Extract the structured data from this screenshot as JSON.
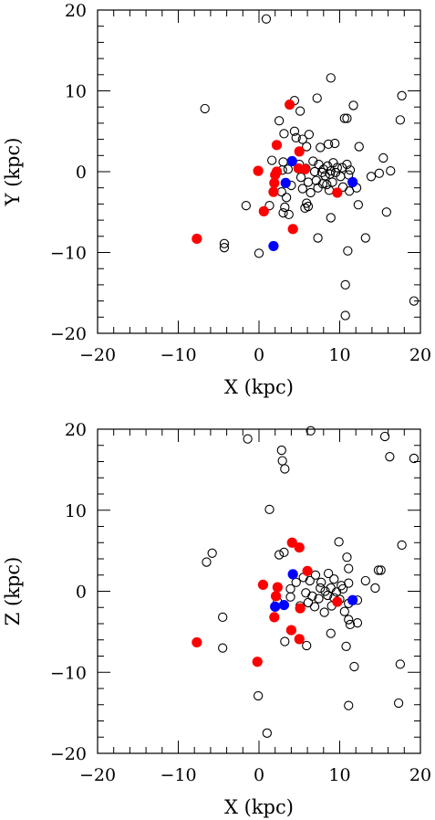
{
  "colors": {
    "open": "#000000",
    "red": "#ff0000",
    "blue": "#0000ff"
  },
  "chart_data": [
    {
      "type": "scatter",
      "xlabel": "X (kpc)",
      "ylabel": "Y (kpc)",
      "xlim": [
        -20,
        20
      ],
      "ylim": [
        -20,
        20
      ],
      "xticks": [
        "−20",
        "−10",
        "0",
        "10",
        "20"
      ],
      "yticks": [
        "−20",
        "−10",
        "0",
        "10",
        "20"
      ],
      "grid": false,
      "series": [
        {
          "marker": "open-circle",
          "color": "#000000",
          "points": [
            [
              0.9,
              18.9
            ],
            [
              -6.7,
              7.8
            ],
            [
              8.9,
              11.6
            ],
            [
              17.7,
              9.4
            ],
            [
              17.5,
              6.4
            ],
            [
              7.2,
              9.1
            ],
            [
              4.4,
              8.8
            ],
            [
              11.7,
              8.2
            ],
            [
              5.1,
              7.5
            ],
            [
              10.6,
              6.6
            ],
            [
              10.9,
              6.6
            ],
            [
              2.5,
              6.3
            ],
            [
              3.1,
              4.7
            ],
            [
              4.4,
              5.0
            ],
            [
              4.6,
              4.2
            ],
            [
              5.4,
              4.0
            ],
            [
              6.2,
              4.6
            ],
            [
              15.4,
              1.7
            ],
            [
              9.4,
              3.5
            ],
            [
              7.6,
              3.0
            ],
            [
              5.9,
              3.1
            ],
            [
              8.6,
              3.4
            ],
            [
              12.4,
              3.1
            ],
            [
              1.6,
              1.4
            ],
            [
              3.0,
              1.2
            ],
            [
              5.0,
              0.9
            ],
            [
              6.7,
              1.3
            ],
            [
              7.4,
              0.9
            ],
            [
              8.0,
              0.3
            ],
            [
              8.5,
              0.7
            ],
            [
              8.9,
              0.1
            ],
            [
              9.2,
              1.1
            ],
            [
              9.7,
              0.5
            ],
            [
              10.3,
              0.5
            ],
            [
              10.9,
              0.9
            ],
            [
              11.3,
              0.2
            ],
            [
              2.9,
              0.2
            ],
            [
              3.6,
              0.3
            ],
            [
              5.8,
              0.4
            ],
            [
              6.9,
              0.0
            ],
            [
              7.8,
              -0.1
            ],
            [
              8.2,
              -0.5
            ],
            [
              8.8,
              -0.3
            ],
            [
              9.5,
              -0.1
            ],
            [
              10.1,
              -0.6
            ],
            [
              11.1,
              -0.4
            ],
            [
              13.9,
              -0.6
            ],
            [
              14.9,
              -0.2
            ],
            [
              16.3,
              0.1
            ],
            [
              5.2,
              -0.7
            ],
            [
              6.1,
              -1.3
            ],
            [
              7.1,
              -1.1
            ],
            [
              8.4,
              -1.6
            ],
            [
              9.1,
              -1.3
            ],
            [
              10.4,
              -1.9
            ],
            [
              11.2,
              -2.4
            ],
            [
              12.1,
              -2.0
            ],
            [
              7.3,
              -2.0
            ],
            [
              5.4,
              -2.1
            ],
            [
              4.0,
              -1.7
            ],
            [
              2.8,
              -2.5
            ],
            [
              3.4,
              -3.2
            ],
            [
              7.9,
              -1.5
            ],
            [
              6.4,
              -2.6
            ],
            [
              8.7,
              -2.3
            ],
            [
              -1.6,
              -4.2
            ],
            [
              1.3,
              -4.2
            ],
            [
              3.2,
              -4.4
            ],
            [
              3.0,
              -5.1
            ],
            [
              3.7,
              -5.3
            ],
            [
              5.9,
              -3.9
            ],
            [
              6.1,
              -4.3
            ],
            [
              5.7,
              -4.5
            ],
            [
              8.9,
              -5.7
            ],
            [
              12.3,
              -4.1
            ],
            [
              15.8,
              -5.0
            ],
            [
              7.3,
              -8.2
            ],
            [
              13.2,
              -8.2
            ],
            [
              11.0,
              -9.8
            ],
            [
              -4.3,
              -8.9
            ],
            [
              -4.3,
              -9.4
            ],
            [
              0.0,
              -10.1
            ],
            [
              10.7,
              -14.0
            ],
            [
              10.7,
              -17.8
            ],
            [
              19.2,
              -16.0
            ]
          ]
        },
        {
          "marker": "filled-circle",
          "color": "#ff0000",
          "points": [
            [
              3.8,
              8.3
            ],
            [
              2.2,
              3.3
            ],
            [
              5.0,
              2.5
            ],
            [
              -0.1,
              0.1
            ],
            [
              2.2,
              0.0
            ],
            [
              4.9,
              0.4
            ],
            [
              5.7,
              0.3
            ],
            [
              2.0,
              -0.4
            ],
            [
              1.9,
              -1.4
            ],
            [
              1.8,
              -2.5
            ],
            [
              9.7,
              -2.6
            ],
            [
              0.6,
              -4.9
            ],
            [
              4.2,
              -7.1
            ],
            [
              -7.7,
              -8.3
            ]
          ]
        },
        {
          "marker": "filled-circle",
          "color": "#0000ff",
          "points": [
            [
              4.1,
              1.3
            ],
            [
              3.3,
              -1.4
            ],
            [
              11.6,
              -1.3
            ],
            [
              1.8,
              -9.2
            ]
          ]
        }
      ]
    },
    {
      "type": "scatter",
      "xlabel": "X (kpc)",
      "ylabel": "Z (kpc)",
      "xlim": [
        -20,
        20
      ],
      "ylim": [
        -20,
        20
      ],
      "xticks": [
        "−20",
        "−10",
        "0",
        "10",
        "20"
      ],
      "yticks": [
        "−20",
        "−10",
        "0",
        "10",
        "20"
      ],
      "grid": false,
      "series": [
        {
          "marker": "open-circle",
          "color": "#000000",
          "points": [
            [
              6.4,
              19.8
            ],
            [
              -1.4,
              18.8
            ],
            [
              2.8,
              17.4
            ],
            [
              15.6,
              19.1
            ],
            [
              16.2,
              16.6
            ],
            [
              19.2,
              16.4
            ],
            [
              2.9,
              16.1
            ],
            [
              3.2,
              15.1
            ],
            [
              1.3,
              10.1
            ],
            [
              -5.8,
              4.7
            ],
            [
              -6.5,
              3.6
            ],
            [
              2.5,
              4.5
            ],
            [
              3.1,
              4.8
            ],
            [
              9.9,
              6.1
            ],
            [
              10.9,
              4.2
            ],
            [
              17.7,
              5.7
            ],
            [
              11.1,
              2.8
            ],
            [
              14.8,
              2.6
            ],
            [
              15.1,
              2.6
            ],
            [
              13.2,
              1.3
            ],
            [
              14.4,
              0.4
            ],
            [
              3.9,
              0.3
            ],
            [
              4.6,
              1.1
            ],
            [
              5.5,
              1.7
            ],
            [
              6.3,
              1.3
            ],
            [
              7.0,
              2.0
            ],
            [
              7.7,
              1.1
            ],
            [
              8.6,
              2.2
            ],
            [
              9.3,
              1.5
            ],
            [
              10.2,
              0.7
            ],
            [
              11.1,
              1.0
            ],
            [
              7.6,
              0.4
            ],
            [
              8.2,
              0.0
            ],
            [
              8.9,
              0.4
            ],
            [
              9.6,
              -0.1
            ],
            [
              10.4,
              0.3
            ],
            [
              5.8,
              -0.2
            ],
            [
              6.6,
              -0.6
            ],
            [
              7.4,
              -0.9
            ],
            [
              8.5,
              -0.5
            ],
            [
              9.3,
              -0.8
            ],
            [
              10.0,
              -1.0
            ],
            [
              11.1,
              -1.5
            ],
            [
              12.2,
              -1.1
            ],
            [
              2.3,
              -1.3
            ],
            [
              3.9,
              -0.7
            ],
            [
              5.1,
              -1.8
            ],
            [
              6.1,
              -1.4
            ],
            [
              6.9,
              -1.9
            ],
            [
              8.1,
              -2.6
            ],
            [
              9.0,
              -1.8
            ],
            [
              10.6,
              -2.5
            ],
            [
              11.1,
              -3.5
            ],
            [
              11.3,
              -4.1
            ],
            [
              12.2,
              -3.9
            ],
            [
              8.9,
              -5.2
            ],
            [
              3.2,
              -6.2
            ],
            [
              5.9,
              -6.7
            ],
            [
              10.8,
              -6.8
            ],
            [
              11.8,
              -9.3
            ],
            [
              -4.5,
              -3.2
            ],
            [
              -4.5,
              -7.0
            ],
            [
              -0.1,
              -12.9
            ],
            [
              1.0,
              -17.5
            ],
            [
              11.1,
              -14.1
            ],
            [
              17.5,
              -9.0
            ],
            [
              17.3,
              -13.8
            ]
          ]
        },
        {
          "marker": "filled-circle",
          "color": "#ff0000",
          "points": [
            [
              4.1,
              6.0
            ],
            [
              5.0,
              5.4
            ],
            [
              6.0,
              2.5
            ],
            [
              0.5,
              0.8
            ],
            [
              2.3,
              0.5
            ],
            [
              2.1,
              -0.6
            ],
            [
              9.7,
              -1.3
            ],
            [
              5.1,
              -2.1
            ],
            [
              1.9,
              -3.2
            ],
            [
              4.0,
              -4.8
            ],
            [
              5.0,
              -5.9
            ],
            [
              -7.7,
              -6.3
            ],
            [
              -0.2,
              -8.7
            ]
          ]
        },
        {
          "marker": "filled-circle",
          "color": "#0000ff",
          "points": [
            [
              4.2,
              2.1
            ],
            [
              2.0,
              -1.9
            ],
            [
              3.1,
              -1.7
            ],
            [
              11.6,
              -1.1
            ]
          ]
        }
      ]
    }
  ]
}
